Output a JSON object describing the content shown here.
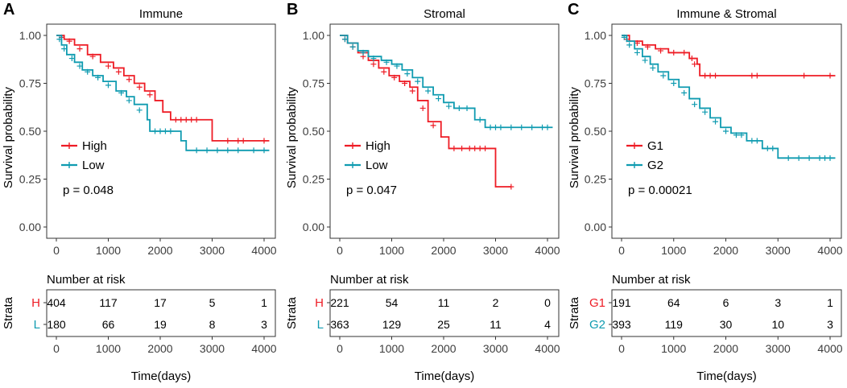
{
  "chart_data": [
    {
      "type": "line",
      "panel_label": "A",
      "title": "Immune",
      "ylabel": "Survival probability",
      "xlabel": "Time(days)",
      "xlim": [
        0,
        4000
      ],
      "ylim": [
        0,
        1
      ],
      "xticks": [
        "0",
        "1000",
        "2000",
        "3000",
        "4000"
      ],
      "yticks": [
        "0.00",
        "0.25",
        "0.50",
        "0.75",
        "1.00"
      ],
      "pvalue": "p = 0.048",
      "series": [
        {
          "name": "High",
          "abbr": "H",
          "color": "#ee1c25",
          "steps": [
            [
              0,
              1.0
            ],
            [
              150,
              0.98
            ],
            [
              350,
              0.95
            ],
            [
              600,
              0.9
            ],
            [
              850,
              0.86
            ],
            [
              1100,
              0.83
            ],
            [
              1300,
              0.79
            ],
            [
              1500,
              0.75
            ],
            [
              1700,
              0.71
            ],
            [
              1900,
              0.66
            ],
            [
              2050,
              0.6
            ],
            [
              2200,
              0.56
            ],
            [
              3000,
              0.45
            ],
            [
              4100,
              0.45
            ]
          ],
          "censors": [
            [
              100,
              0.99
            ],
            [
              250,
              0.97
            ],
            [
              450,
              0.93
            ],
            [
              700,
              0.89
            ],
            [
              1000,
              0.84
            ],
            [
              1200,
              0.81
            ],
            [
              1400,
              0.77
            ],
            [
              1600,
              0.73
            ],
            [
              1800,
              0.69
            ],
            [
              2300,
              0.56
            ],
            [
              2400,
              0.56
            ],
            [
              2500,
              0.56
            ],
            [
              2600,
              0.56
            ],
            [
              2700,
              0.56
            ],
            [
              3300,
              0.45
            ],
            [
              3500,
              0.45
            ],
            [
              3600,
              0.45
            ],
            [
              4000,
              0.45
            ]
          ]
        },
        {
          "name": "Low",
          "abbr": "L",
          "color": "#0f9bb0",
          "steps": [
            [
              0,
              1.0
            ],
            [
              100,
              0.95
            ],
            [
              200,
              0.9
            ],
            [
              350,
              0.86
            ],
            [
              500,
              0.82
            ],
            [
              700,
              0.79
            ],
            [
              900,
              0.76
            ],
            [
              1150,
              0.71
            ],
            [
              1350,
              0.68
            ],
            [
              1500,
              0.64
            ],
            [
              1750,
              0.56
            ],
            [
              1800,
              0.5
            ],
            [
              2400,
              0.45
            ],
            [
              2500,
              0.4
            ],
            [
              4100,
              0.4
            ]
          ],
          "censors": [
            [
              60,
              0.98
            ],
            [
              150,
              0.93
            ],
            [
              300,
              0.88
            ],
            [
              450,
              0.84
            ],
            [
              600,
              0.81
            ],
            [
              800,
              0.78
            ],
            [
              1000,
              0.74
            ],
            [
              1250,
              0.7
            ],
            [
              1400,
              0.66
            ],
            [
              1600,
              0.61
            ],
            [
              1900,
              0.5
            ],
            [
              2000,
              0.5
            ],
            [
              2100,
              0.5
            ],
            [
              2200,
              0.5
            ],
            [
              2700,
              0.4
            ],
            [
              2900,
              0.4
            ],
            [
              3100,
              0.4
            ],
            [
              3300,
              0.4
            ],
            [
              3500,
              0.4
            ],
            [
              3800,
              0.4
            ],
            [
              4000,
              0.4
            ]
          ]
        }
      ],
      "risk_table": {
        "title": "Number at risk",
        "strata_label": "Strata",
        "times": [
          "0",
          "1000",
          "2000",
          "3000",
          "4000"
        ],
        "rows": [
          {
            "label": "H",
            "values": [
              "404",
              "117",
              "17",
              "5",
              "1"
            ]
          },
          {
            "label": "L",
            "values": [
              "180",
              "66",
              "19",
              "8",
              "3"
            ]
          }
        ]
      }
    },
    {
      "type": "line",
      "panel_label": "B",
      "title": "Stromal",
      "ylabel": "Survival probability",
      "xlabel": "Time(days)",
      "xlim": [
        0,
        4000
      ],
      "ylim": [
        0,
        1
      ],
      "xticks": [
        "0",
        "1000",
        "2000",
        "3000",
        "4000"
      ],
      "yticks": [
        "0.00",
        "0.25",
        "0.50",
        "0.75",
        "1.00"
      ],
      "pvalue": "p = 0.047",
      "series": [
        {
          "name": "High",
          "abbr": "H",
          "color": "#ee1c25",
          "steps": [
            [
              0,
              1.0
            ],
            [
              150,
              0.96
            ],
            [
              350,
              0.91
            ],
            [
              550,
              0.87
            ],
            [
              750,
              0.83
            ],
            [
              950,
              0.79
            ],
            [
              1150,
              0.76
            ],
            [
              1350,
              0.73
            ],
            [
              1500,
              0.66
            ],
            [
              1700,
              0.55
            ],
            [
              1950,
              0.47
            ],
            [
              2100,
              0.41
            ],
            [
              3000,
              0.21
            ],
            [
              3300,
              0.21
            ]
          ],
          "censors": [
            [
              100,
              0.98
            ],
            [
              250,
              0.94
            ],
            [
              450,
              0.89
            ],
            [
              650,
              0.85
            ],
            [
              850,
              0.81
            ],
            [
              1050,
              0.78
            ],
            [
              1250,
              0.75
            ],
            [
              1400,
              0.71
            ],
            [
              1600,
              0.62
            ],
            [
              1800,
              0.53
            ],
            [
              2200,
              0.41
            ],
            [
              2350,
              0.41
            ],
            [
              2500,
              0.41
            ],
            [
              2600,
              0.41
            ],
            [
              2700,
              0.41
            ],
            [
              2800,
              0.41
            ],
            [
              3300,
              0.21
            ]
          ]
        },
        {
          "name": "Low",
          "abbr": "L",
          "color": "#0f9bb0",
          "steps": [
            [
              0,
              1.0
            ],
            [
              150,
              0.96
            ],
            [
              350,
              0.92
            ],
            [
              550,
              0.89
            ],
            [
              800,
              0.87
            ],
            [
              1000,
              0.85
            ],
            [
              1200,
              0.82
            ],
            [
              1400,
              0.78
            ],
            [
              1600,
              0.73
            ],
            [
              1800,
              0.69
            ],
            [
              2000,
              0.65
            ],
            [
              2200,
              0.62
            ],
            [
              2600,
              0.56
            ],
            [
              2800,
              0.52
            ],
            [
              4100,
              0.52
            ]
          ],
          "censors": [
            [
              100,
              0.98
            ],
            [
              250,
              0.94
            ],
            [
              450,
              0.91
            ],
            [
              650,
              0.88
            ],
            [
              900,
              0.86
            ],
            [
              1100,
              0.84
            ],
            [
              1300,
              0.8
            ],
            [
              1500,
              0.76
            ],
            [
              1700,
              0.71
            ],
            [
              1900,
              0.67
            ],
            [
              2100,
              0.63
            ],
            [
              2300,
              0.62
            ],
            [
              2450,
              0.62
            ],
            [
              2700,
              0.56
            ],
            [
              2900,
              0.52
            ],
            [
              3000,
              0.52
            ],
            [
              3100,
              0.52
            ],
            [
              3300,
              0.52
            ],
            [
              3500,
              0.52
            ],
            [
              3700,
              0.52
            ],
            [
              3900,
              0.52
            ],
            [
              4000,
              0.52
            ]
          ]
        }
      ],
      "risk_table": {
        "title": "Number at risk",
        "strata_label": "Strata",
        "times": [
          "0",
          "1000",
          "2000",
          "3000",
          "4000"
        ],
        "rows": [
          {
            "label": "H",
            "values": [
              "221",
              "54",
              "11",
              "2",
              "0"
            ]
          },
          {
            "label": "L",
            "values": [
              "363",
              "129",
              "25",
              "11",
              "4"
            ]
          }
        ]
      }
    },
    {
      "type": "line",
      "panel_label": "C",
      "title": "Immune & Stromal",
      "ylabel": "Survival probability",
      "xlabel": "Time(days)",
      "xlim": [
        0,
        4000
      ],
      "ylim": [
        0,
        1
      ],
      "xticks": [
        "0",
        "1000",
        "2000",
        "3000",
        "4000"
      ],
      "yticks": [
        "0.00",
        "0.25",
        "0.50",
        "0.75",
        "1.00"
      ],
      "pvalue": "p = 0.00021",
      "series": [
        {
          "name": "G1",
          "abbr": "G1",
          "color": "#ee1c25",
          "steps": [
            [
              0,
              1.0
            ],
            [
              150,
              0.97
            ],
            [
              400,
              0.95
            ],
            [
              650,
              0.93
            ],
            [
              900,
              0.91
            ],
            [
              1100,
              0.91
            ],
            [
              1300,
              0.88
            ],
            [
              1450,
              0.85
            ],
            [
              1500,
              0.79
            ],
            [
              4100,
              0.79
            ]
          ],
          "censors": [
            [
              100,
              0.98
            ],
            [
              300,
              0.96
            ],
            [
              500,
              0.94
            ],
            [
              750,
              0.92
            ],
            [
              1000,
              0.91
            ],
            [
              1200,
              0.91
            ],
            [
              1350,
              0.88
            ],
            [
              1400,
              0.85
            ],
            [
              1600,
              0.79
            ],
            [
              1700,
              0.79
            ],
            [
              1800,
              0.79
            ],
            [
              2500,
              0.79
            ],
            [
              2600,
              0.79
            ],
            [
              3500,
              0.79
            ],
            [
              4000,
              0.79
            ]
          ]
        },
        {
          "name": "G2",
          "abbr": "G2",
          "color": "#0f9bb0",
          "steps": [
            [
              0,
              1.0
            ],
            [
              100,
              0.97
            ],
            [
              250,
              0.93
            ],
            [
              400,
              0.89
            ],
            [
              550,
              0.85
            ],
            [
              700,
              0.81
            ],
            [
              900,
              0.77
            ],
            [
              1100,
              0.73
            ],
            [
              1300,
              0.67
            ],
            [
              1500,
              0.62
            ],
            [
              1700,
              0.57
            ],
            [
              1900,
              0.52
            ],
            [
              2100,
              0.49
            ],
            [
              2400,
              0.45
            ],
            [
              2700,
              0.41
            ],
            [
              3000,
              0.36
            ],
            [
              4100,
              0.36
            ]
          ],
          "censors": [
            [
              50,
              0.99
            ],
            [
              150,
              0.95
            ],
            [
              300,
              0.91
            ],
            [
              450,
              0.87
            ],
            [
              600,
              0.83
            ],
            [
              800,
              0.79
            ],
            [
              1000,
              0.75
            ],
            [
              1200,
              0.7
            ],
            [
              1400,
              0.64
            ],
            [
              1600,
              0.6
            ],
            [
              1800,
              0.55
            ],
            [
              2000,
              0.5
            ],
            [
              2200,
              0.48
            ],
            [
              2300,
              0.48
            ],
            [
              2500,
              0.45
            ],
            [
              2600,
              0.45
            ],
            [
              2800,
              0.41
            ],
            [
              2900,
              0.41
            ],
            [
              3200,
              0.36
            ],
            [
              3400,
              0.36
            ],
            [
              3600,
              0.36
            ],
            [
              3800,
              0.36
            ],
            [
              3900,
              0.36
            ],
            [
              4000,
              0.36
            ]
          ]
        }
      ],
      "risk_table": {
        "title": "Number at risk",
        "strata_label": "Strata",
        "times": [
          "0",
          "1000",
          "2000",
          "3000",
          "4000"
        ],
        "rows": [
          {
            "label": "G1",
            "values": [
              "191",
              "64",
              "6",
              "3",
              "1"
            ]
          },
          {
            "label": "G2",
            "values": [
              "393",
              "119",
              "30",
              "10",
              "3"
            ]
          }
        ]
      }
    }
  ]
}
